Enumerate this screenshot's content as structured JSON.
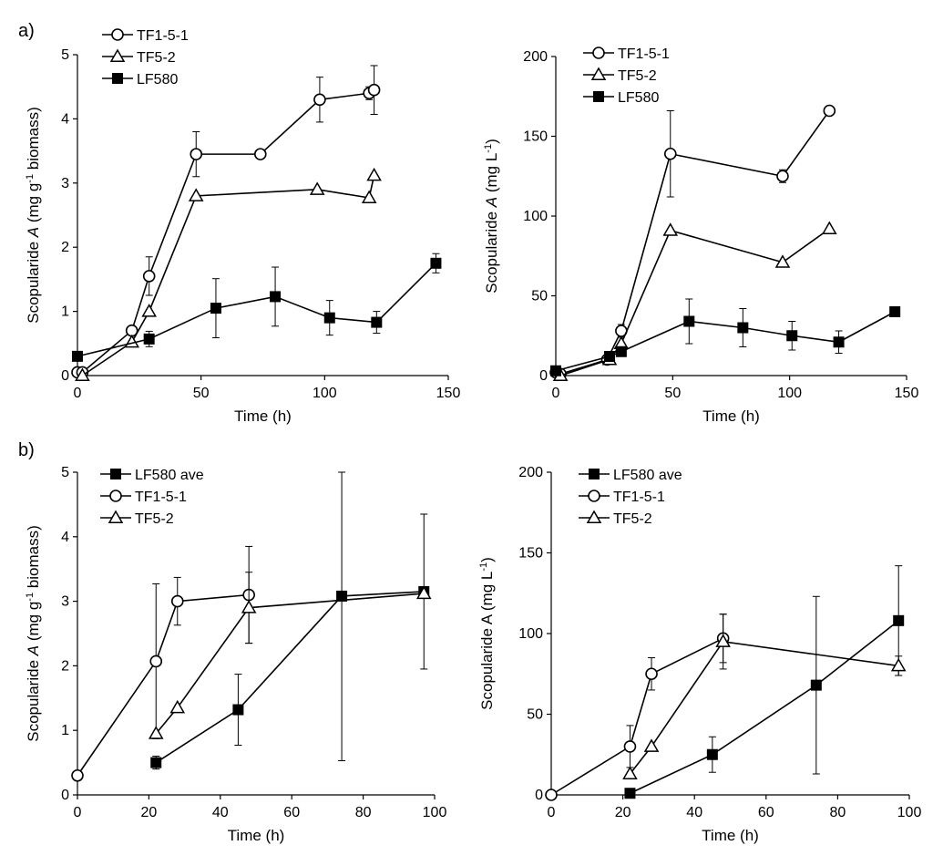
{
  "figure": {
    "panel_labels": [
      "a)",
      "b)"
    ]
  },
  "chart_data": [
    {
      "id": "a-left",
      "type": "line",
      "panel": "a)",
      "xlabel": "Time  (h)",
      "ylabel": "Scopularide A (mg g-1 biomass)",
      "ylabel_parts": {
        "pre": "Scopularide ",
        "italic": "A",
        "mid": " (mg g",
        "sup": "-1",
        "post": " biomass)"
      },
      "xlim": [
        0,
        150
      ],
      "ylim": [
        0,
        5
      ],
      "xticks": [
        0,
        50,
        100,
        150
      ],
      "yticks": [
        0,
        1,
        2,
        3,
        4,
        5
      ],
      "grid": false,
      "legend": "top-left",
      "series": [
        {
          "name": "TF1-5-1",
          "marker": "circle-open",
          "x": [
            0,
            2,
            22,
            29,
            48,
            74,
            98,
            118,
            120
          ],
          "y": [
            0.05,
            0.05,
            0.7,
            1.55,
            3.45,
            3.45,
            4.3,
            4.4,
            4.45
          ],
          "err": [
            0,
            0,
            0,
            0.3,
            0.35,
            0,
            0.35,
            0.1,
            0.38
          ]
        },
        {
          "name": "TF5-2",
          "marker": "triangle-open",
          "x": [
            2,
            22,
            29,
            48,
            97,
            118,
            120
          ],
          "y": [
            0.0,
            0.52,
            1.0,
            2.8,
            2.9,
            2.77,
            3.12
          ],
          "err": [
            0,
            0,
            0,
            0,
            0,
            0,
            0
          ]
        },
        {
          "name": "LF580",
          "marker": "square-filled",
          "x": [
            0,
            29,
            56,
            80,
            102,
            121,
            145
          ],
          "y": [
            0.3,
            0.57,
            1.05,
            1.23,
            0.9,
            0.83,
            1.75
          ],
          "err": [
            0,
            0.12,
            0.46,
            0.46,
            0.27,
            0.17,
            0.15
          ]
        }
      ]
    },
    {
      "id": "a-right",
      "type": "line",
      "panel": "",
      "xlabel": "Time  (h)",
      "ylabel": "Scopularide A (mg L-1)",
      "ylabel_parts": {
        "pre": "Scopularide ",
        "italic": "A",
        "mid": " (mg L",
        "sup": "-1",
        "post": ")"
      },
      "xlim": [
        0,
        150
      ],
      "ylim": [
        0,
        200
      ],
      "xticks": [
        0,
        50,
        100,
        150
      ],
      "yticks": [
        0,
        50,
        100,
        150,
        200
      ],
      "grid": false,
      "legend": "top-left",
      "series": [
        {
          "name": "TF1-5-1",
          "marker": "circle-open",
          "x": [
            0,
            2,
            22,
            28,
            49,
            97,
            117
          ],
          "y": [
            2,
            1,
            10,
            28,
            139,
            125,
            166
          ],
          "err": [
            0,
            0,
            0,
            4,
            27,
            4,
            0
          ]
        },
        {
          "name": "TF5-2",
          "marker": "triangle-open",
          "x": [
            2,
            23,
            28,
            49,
            97,
            117
          ],
          "y": [
            0,
            10,
            20,
            91,
            71,
            92
          ],
          "err": [
            0,
            0,
            0,
            0,
            0,
            0
          ]
        },
        {
          "name": "LF580",
          "marker": "square-filled",
          "x": [
            0,
            23,
            28,
            57,
            80,
            101,
            121,
            145
          ],
          "y": [
            3,
            12,
            15,
            34,
            30,
            25,
            21,
            40
          ],
          "err": [
            0,
            0,
            0,
            14,
            12,
            9,
            7,
            0
          ]
        }
      ]
    },
    {
      "id": "b-left",
      "type": "line",
      "panel": "b)",
      "xlabel": "Time  (h)",
      "ylabel": "Scopularide A (mg g-1 biomass)",
      "ylabel_parts": {
        "pre": "Scopularide ",
        "italic": "A",
        "mid": " (mg g",
        "sup": "-1",
        "post": " biomass)"
      },
      "xlim": [
        0,
        100
      ],
      "ylim": [
        0,
        5
      ],
      "xticks": [
        0,
        20,
        40,
        60,
        80,
        100
      ],
      "yticks": [
        0,
        1,
        2,
        3,
        4,
        5
      ],
      "grid": false,
      "legend": "top-left",
      "series": [
        {
          "name": "LF580 ave",
          "marker": "square-filled",
          "x": [
            22,
            45,
            74,
            97
          ],
          "y": [
            0.5,
            1.32,
            3.08,
            3.15
          ],
          "err": [
            0.1,
            0.55,
            2.55,
            1.2
          ]
        },
        {
          "name": "TF1-5-1",
          "marker": "circle-open",
          "x": [
            0,
            22,
            28,
            48
          ],
          "y": [
            0.3,
            2.07,
            3.0,
            3.1
          ],
          "err": [
            0,
            1.2,
            0.37,
            0.75
          ]
        },
        {
          "name": "TF5-2",
          "marker": "triangle-open",
          "x": [
            22,
            28,
            48,
            97
          ],
          "y": [
            0.95,
            1.35,
            2.9,
            3.12
          ],
          "err": [
            0,
            0,
            0.55,
            0
          ]
        }
      ]
    },
    {
      "id": "b-right",
      "type": "line",
      "panel": "",
      "xlabel": "Time (h)",
      "ylabel": "Scopularide A (mg L-1)",
      "ylabel_parts": {
        "pre": "Scopularide A (mg L",
        "italic": "",
        "mid": "",
        "sup": "-1",
        "post": ")"
      },
      "xlim": [
        0,
        100
      ],
      "ylim": [
        0,
        200
      ],
      "xticks": [
        0,
        20,
        40,
        60,
        80,
        100
      ],
      "yticks": [
        0,
        50,
        100,
        150,
        200
      ],
      "grid": false,
      "legend": "top-left",
      "series": [
        {
          "name": "LF580 ave",
          "marker": "square-filled",
          "x": [
            22,
            45,
            74,
            97
          ],
          "y": [
            1,
            25,
            68,
            108
          ],
          "err": [
            0,
            11,
            55,
            34
          ]
        },
        {
          "name": "TF1-5-1",
          "marker": "circle-open",
          "x": [
            0,
            22,
            28,
            48
          ],
          "y": [
            0,
            30,
            75,
            97
          ],
          "err": [
            0,
            13,
            10,
            15
          ]
        },
        {
          "name": "TF5-2",
          "marker": "triangle-open",
          "x": [
            22,
            28,
            48,
            97
          ],
          "y": [
            13,
            30,
            95,
            80
          ],
          "err": [
            0,
            0,
            17,
            6
          ]
        }
      ]
    }
  ]
}
